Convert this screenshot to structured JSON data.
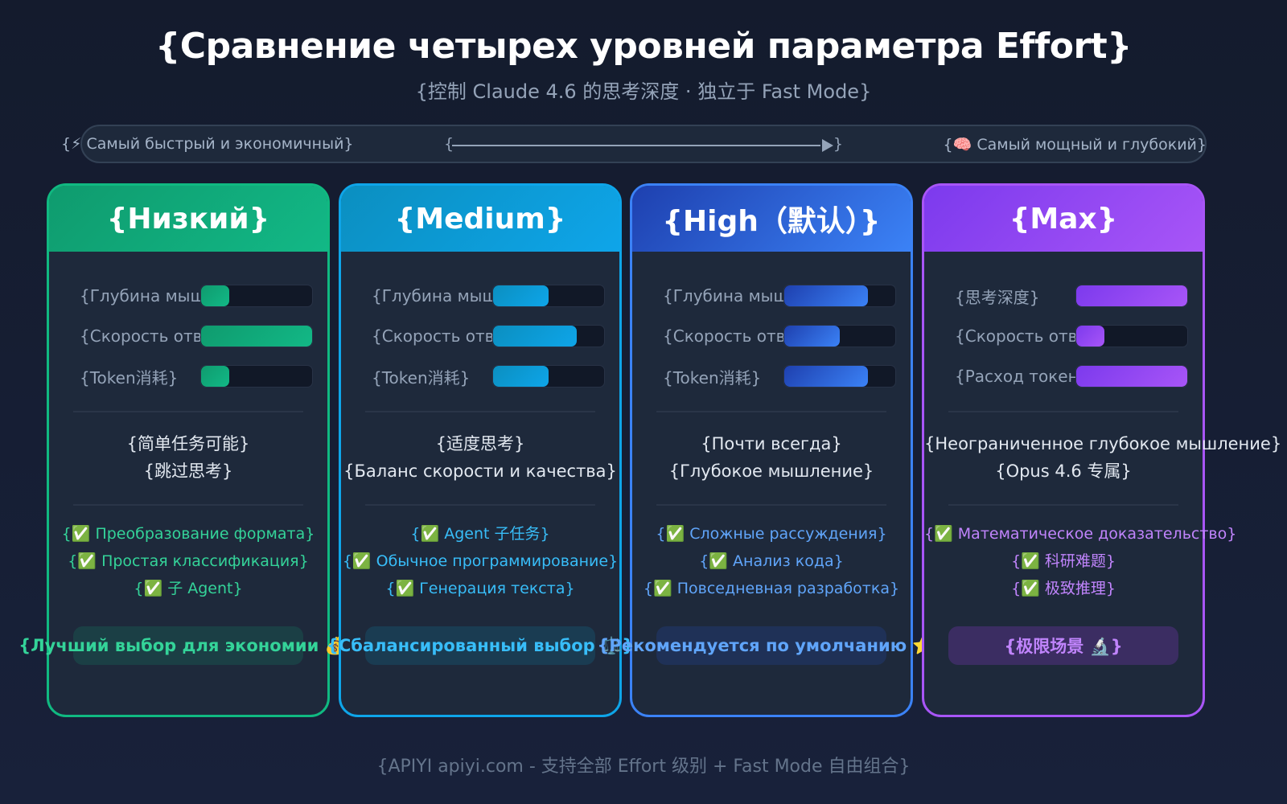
{
  "header": {
    "title": "{Сравнение четырех уровней параметра Effort}",
    "subtitle": "{控制 Claude 4.6 的思考深度 · 独立于 Fast Mode}"
  },
  "scale": {
    "left_label": "{⚡ Самый быстрый и экономичный}",
    "right_label": "{🧠 Самый мощный и глубокий}",
    "arrow_open": "{",
    "arrow_close": "}"
  },
  "cards": [
    {
      "title": "{Низкий}",
      "color": "#10b981",
      "head_from": "#0f9b6e",
      "head_to": "#12b886",
      "feature_color": "#34d399",
      "badge_bg": "#1b3f45",
      "metrics": [
        {
          "label": "{Глубина мышления}",
          "fill": 25
        },
        {
          "label": "{Скорость ответа}",
          "fill": 100
        },
        {
          "label": "{Token消耗}",
          "fill": 25
        }
      ],
      "desc": [
        "{简单任务可能}",
        "{跳过思考}"
      ],
      "features": [
        "{✅ Преобразование формата}",
        "{✅ Простая классификация}",
        "{✅ 子 Agent}"
      ],
      "badge": "{Лучший выбор для экономии 💰}"
    },
    {
      "title": "{Medium}",
      "color": "#0ea5e9",
      "head_from": "#0b8fc0",
      "head_to": "#0ea5e9",
      "feature_color": "#38bdf8",
      "badge_bg": "#1a3c52",
      "metrics": [
        {
          "label": "{Глубина мышления}",
          "fill": 50
        },
        {
          "label": "{Скорость ответа}",
          "fill": 75
        },
        {
          "label": "{Token消耗}",
          "fill": 50
        }
      ],
      "desc": [
        "{适度思考}",
        "{Баланс скорости и качества}"
      ],
      "features": [
        "{✅ Agent 子任务}",
        "{✅ Обычное программирование}",
        "{✅ Генерация текста}"
      ],
      "badge": "{Сбалансированный выбор ⚖️}"
    },
    {
      "title": "{High（默认）}",
      "color": "#3b82f6",
      "head_from": "#1e40af",
      "head_to": "#3b82f6",
      "feature_color": "#60a5fa",
      "badge_bg": "#1f3157",
      "metrics": [
        {
          "label": "{Глубина мышления}",
          "fill": 75
        },
        {
          "label": "{Скорость ответа}",
          "fill": 50
        },
        {
          "label": "{Token消耗}",
          "fill": 75
        }
      ],
      "desc": [
        "{Почти всегда}",
        "{Глубокое мышление}"
      ],
      "features": [
        "{✅ Сложные рассуждения}",
        "{✅ Анализ кода}",
        "{✅ Повседневная разработка}"
      ],
      "badge": "{Рекомендуется по умолчанию ⭐}"
    },
    {
      "title": "{Max}",
      "color": "#a855f7",
      "head_from": "#7c3aed",
      "head_to": "#a855f7",
      "feature_color": "#c084fc",
      "badge_bg": "#3b2d62",
      "metrics": [
        {
          "label": "{思考深度}",
          "fill": 100
        },
        {
          "label": "{Скорость ответа}",
          "fill": 25
        },
        {
          "label": "{Расход токенов}",
          "fill": 100
        }
      ],
      "desc": [
        "{Неограниченное глубокое мышление}",
        "{Opus 4.6 专属}"
      ],
      "features": [
        "{✅ Математическое доказательство}",
        "{✅ 科研难题}",
        "{✅ 极致推理}"
      ],
      "badge": "{极限场景 🔬}"
    }
  ],
  "footer": "{APIYI apiyi.com - 支持全部 Effort 级别 + Fast Mode 自由组合}"
}
